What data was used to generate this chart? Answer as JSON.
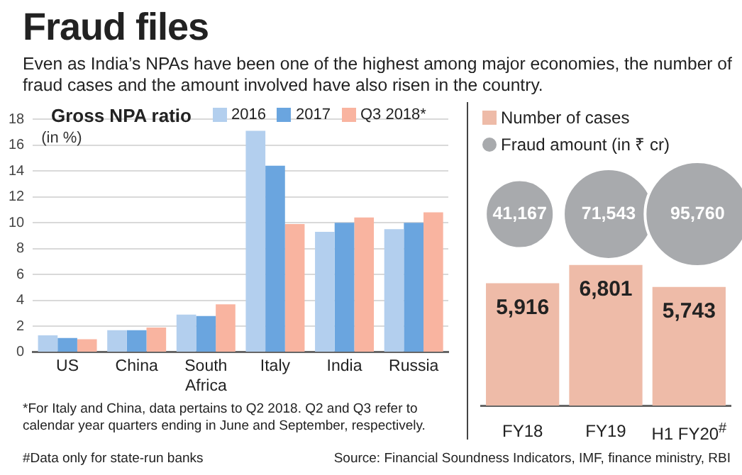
{
  "chart_data": [
    {
      "type": "other",
      "title": "Fraud files",
      "subtitle": "Even as India’s NPAs have been one of the highest among major economies, the number of fraud cases and the amount involved have also risen in the country.",
      "annotations": [
        "#Data only for state-run banks",
        "Source: Financial Soundness Indicators, IMF, finance ministry, RBI"
      ]
    },
    {
      "type": "bar",
      "title": "Gross NPA ratio",
      "ylabel": "(in %)",
      "categories": [
        "US",
        "China",
        "South Africa",
        "Italy",
        "India",
        "Russia"
      ],
      "series": [
        {
          "name": "2016",
          "color": "#b3cfee",
          "values": [
            1.3,
            1.7,
            2.9,
            17.1,
            9.3,
            9.5
          ]
        },
        {
          "name": "2017",
          "color": "#6aa5df",
          "values": [
            1.1,
            1.7,
            2.8,
            14.4,
            10.0,
            10.0
          ]
        },
        {
          "name": "Q3 2018*",
          "color": "#f9b4a0",
          "values": [
            1.0,
            1.9,
            3.7,
            9.9,
            10.4,
            10.8
          ]
        }
      ],
      "ylim": [
        0,
        18
      ],
      "yticks": [
        0,
        2,
        4,
        6,
        8,
        10,
        12,
        14,
        16,
        18
      ],
      "grid": "y",
      "legend": "top right",
      "annotations": [
        "*For Italy and China, data pertains to Q2 2018. Q2 and Q3 refer to calendar year quarters ending in June and September, respectively."
      ]
    },
    {
      "type": "bar",
      "categories": [
        "FY18",
        "FY19",
        "H1 FY20$^{#}$"
      ],
      "series": [
        {
          "name": "Number of cases",
          "color": "#eebba8",
          "values": [
            5916,
            6801,
            5743
          ],
          "value_labels": [
            "5,916",
            "6,801",
            "5,743"
          ]
        }
      ],
      "tick_labels": "x",
      "legend": "top left"
    },
    {
      "type": "other",
      "series": [
        {
          "name": "Fraud amount (in ₹ cr)",
          "color": "#a8aaad",
          "values": [
            41167,
            71543,
            95760
          ],
          "value_labels": [
            "41,167",
            "71,543",
            "95,760"
          ]
        }
      ],
      "legend": "top left"
    }
  ]
}
